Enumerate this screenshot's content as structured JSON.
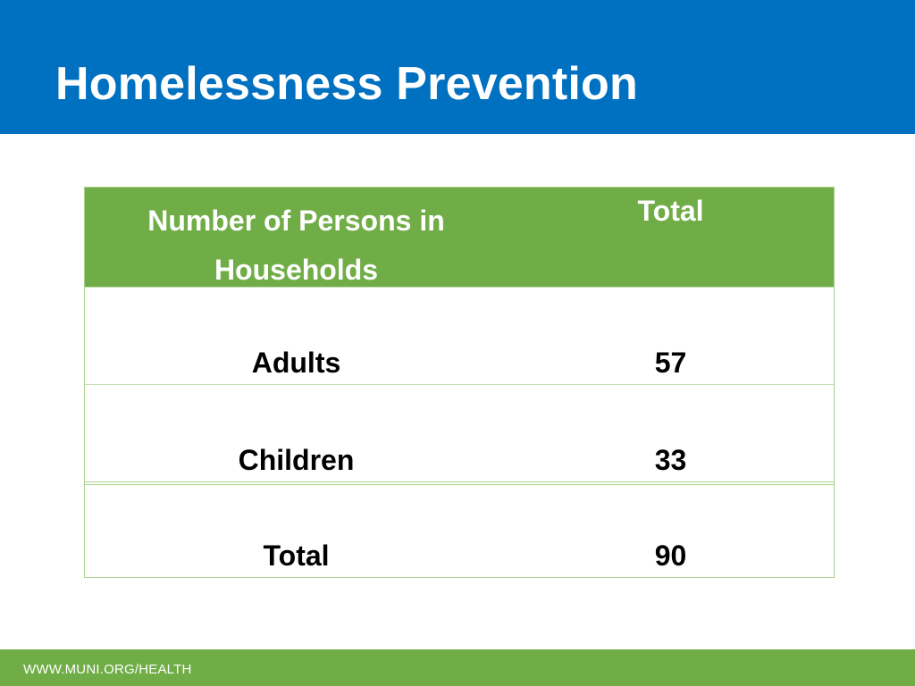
{
  "slide": {
    "title": "Homelessness Prevention"
  },
  "table": {
    "header": {
      "label": "Number of Persons in Households",
      "value": "Total"
    },
    "rows": [
      {
        "label": "Adults",
        "value": "57"
      },
      {
        "label": "Children",
        "value": "33"
      },
      {
        "label": "Total",
        "value": "90"
      }
    ]
  },
  "footer": {
    "url": "WWW.MUNI.ORG/HEALTH"
  },
  "colors": {
    "header_band": "#0070C0",
    "table_header": "#70AD47",
    "footer_band": "#70AD47",
    "table_border": "#A9D18E"
  }
}
